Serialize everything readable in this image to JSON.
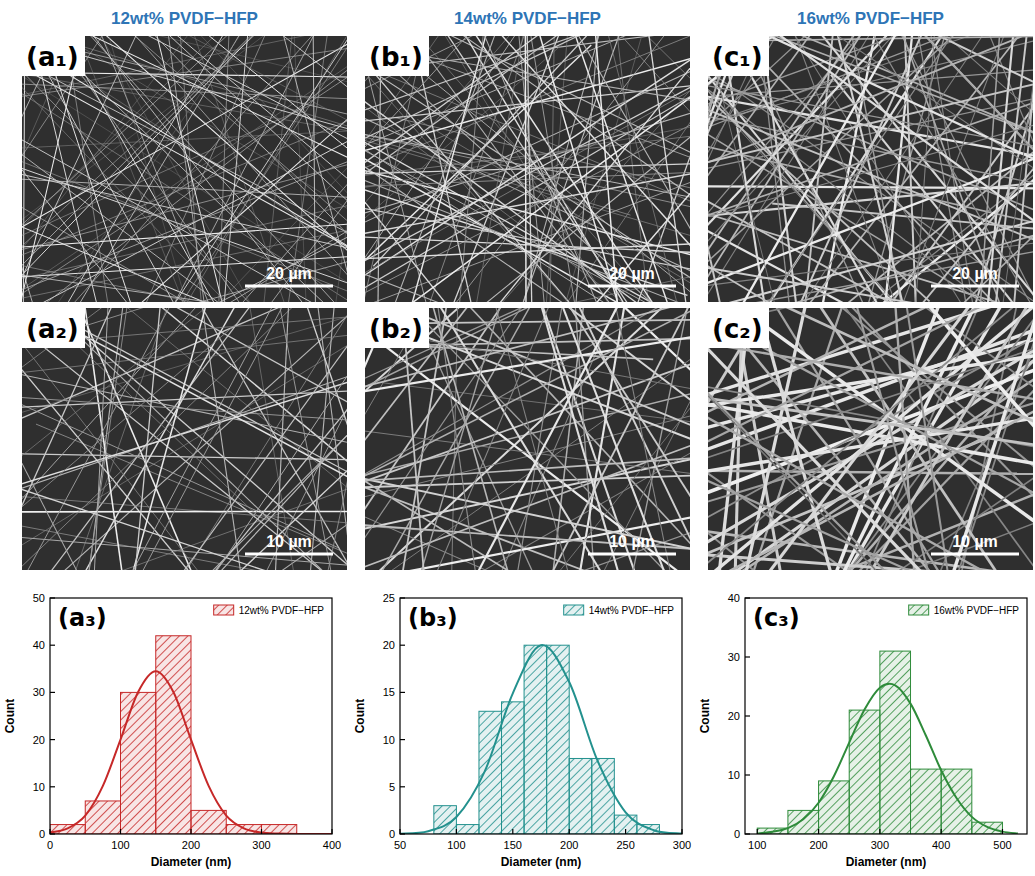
{
  "columns": [
    {
      "title": "12wt% PVDF−HFP",
      "images": [
        {
          "label": "(a₁)",
          "scale_bar": "20 µm"
        },
        {
          "label": "(a₂)",
          "scale_bar": "10 µm"
        }
      ]
    },
    {
      "title": "14wt% PVDF−HFP",
      "images": [
        {
          "label": "(b₁)",
          "scale_bar": "20 µm"
        },
        {
          "label": "(b₂)",
          "scale_bar": "10 µm"
        }
      ]
    },
    {
      "title": "16wt% PVDF−HFP",
      "images": [
        {
          "label": "(c₁)",
          "scale_bar": "20 µm"
        },
        {
          "label": "(c₂)",
          "scale_bar": "10 µm"
        }
      ]
    }
  ],
  "chart_data": [
    {
      "type": "histogram",
      "title": "(a₃)",
      "x_label": "Diameter (nm)",
      "y_label": "Count",
      "bins": [
        0,
        50,
        100,
        150,
        200,
        250,
        300,
        350
      ],
      "series": [
        {
          "name": "12wt% PVDF−HFP",
          "type": "bar",
          "color": "#c62828",
          "values": [
            2,
            7,
            30,
            42,
            5,
            2,
            2
          ]
        },
        {
          "type": "line",
          "color": "#c62828",
          "x": [
            0,
            25,
            50,
            75,
            100,
            125,
            150,
            175,
            200,
            225,
            250,
            275,
            300,
            325,
            350,
            375,
            400
          ],
          "values": [
            0.3,
            1.2,
            3.9,
            10.2,
            20.0,
            30.1,
            34.5,
            30.1,
            20.0,
            10.2,
            3.9,
            1.2,
            0.3,
            0.1,
            0,
            0,
            0
          ]
        }
      ],
      "xlim": [
        0,
        400
      ],
      "xticks": [
        0,
        100,
        200,
        300,
        400
      ],
      "ylim": [
        0,
        50
      ],
      "yticks": [
        0,
        10,
        20,
        30,
        40,
        50
      ],
      "grid": false,
      "legend": "upper right"
    },
    {
      "type": "histogram",
      "title": "(b₃)",
      "x_label": "Diameter (nm)",
      "y_label": "Count",
      "bins": [
        80,
        100,
        120,
        140,
        160,
        180,
        200,
        220,
        240,
        260,
        280
      ],
      "series": [
        {
          "name": "14wt% PVDF−HFP",
          "type": "bar",
          "color": "#23918e",
          "values": [
            3,
            1,
            13,
            14,
            20,
            20,
            8,
            8,
            2,
            1
          ]
        },
        {
          "type": "line",
          "color": "#23918e",
          "x": [
            50,
            75,
            100,
            125,
            150,
            175,
            200,
            225,
            250,
            275,
            300
          ],
          "values": [
            0.03,
            0.3,
            1.8,
            6.6,
            14.9,
            20.0,
            16.1,
            7.8,
            2.3,
            0.4,
            0.04
          ]
        }
      ],
      "xlim": [
        50,
        300
      ],
      "xticks": [
        50,
        100,
        150,
        200,
        250,
        300
      ],
      "ylim": [
        0,
        25
      ],
      "yticks": [
        0,
        5,
        10,
        15,
        20,
        25
      ],
      "grid": false,
      "legend": "upper right"
    },
    {
      "type": "histogram",
      "title": "(c₃)",
      "x_label": "Diameter (nm)",
      "y_label": "Count",
      "bins": [
        100,
        150,
        200,
        250,
        300,
        350,
        400,
        450,
        500
      ],
      "series": [
        {
          "name": "16wt% PVDF−HFP",
          "type": "bar",
          "color": "#2e8b3a",
          "values": [
            1,
            4,
            9,
            21,
            31,
            11,
            11,
            2
          ]
        },
        {
          "type": "line",
          "color": "#2e8b3a",
          "x": [
            100,
            125,
            150,
            175,
            200,
            225,
            250,
            275,
            300,
            325,
            350,
            375,
            400,
            425,
            450,
            475,
            500,
            525
          ],
          "values": [
            0.1,
            0.4,
            1.0,
            2.5,
            5.3,
            9.8,
            15.5,
            21.1,
            24.8,
            25.2,
            22.1,
            16.7,
            10.8,
            6.1,
            2.9,
            1.2,
            0.4,
            0.1
          ]
        }
      ],
      "xlim": [
        80,
        540
      ],
      "xticks": [
        100,
        200,
        300,
        400,
        500
      ],
      "ylim": [
        0,
        40
      ],
      "yticks": [
        0,
        10,
        20,
        30,
        40
      ],
      "grid": false,
      "legend": "upper right"
    }
  ]
}
